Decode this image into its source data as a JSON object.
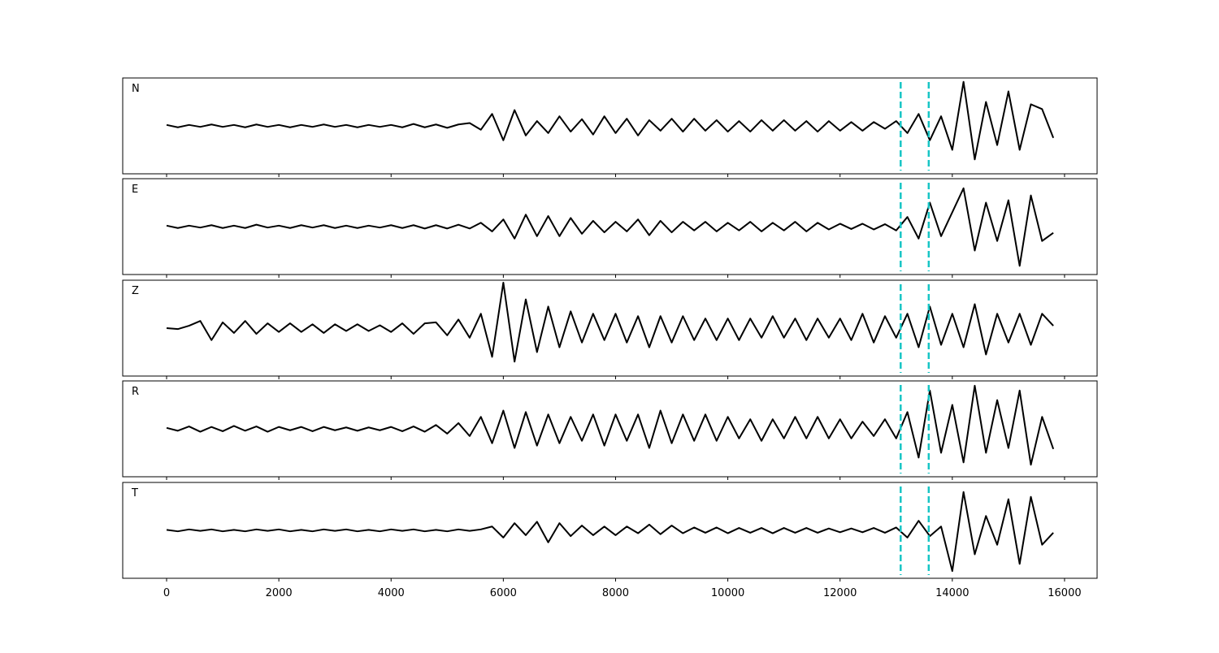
{
  "chart_data": {
    "type": "line",
    "x": [
      0,
      200,
      400,
      600,
      800,
      1000,
      1200,
      1400,
      1600,
      1800,
      2000,
      2200,
      2400,
      2600,
      2800,
      3000,
      3200,
      3400,
      3600,
      3800,
      4000,
      4200,
      4400,
      4600,
      4800,
      5000,
      5200,
      5400,
      5600,
      5800,
      6000,
      6200,
      6400,
      6600,
      6800,
      7000,
      7200,
      7400,
      7600,
      7800,
      8000,
      8200,
      8400,
      8600,
      8800,
      9000,
      9200,
      9400,
      9600,
      9800,
      10000,
      10200,
      10400,
      10600,
      10800,
      11000,
      11200,
      11400,
      11600,
      11800,
      12000,
      12200,
      12400,
      12600,
      12800,
      13000,
      13200,
      13400,
      13600,
      13800,
      14000,
      14200,
      14400,
      14600,
      14800,
      15000,
      15200,
      15400,
      15600,
      15800
    ],
    "xlim": [
      -782,
      16580
    ],
    "xticks": [
      0,
      2000,
      4000,
      6000,
      8000,
      10000,
      12000,
      14000,
      16000
    ],
    "ylim": [
      -1,
      1
    ],
    "vlines": {
      "color": "#17c5c5",
      "values": [
        13080,
        13580
      ]
    },
    "series": [
      {
        "name": "N",
        "color": "#000000",
        "values": [
          0.02,
          -0.03,
          0.02,
          -0.02,
          0.03,
          -0.02,
          0.02,
          -0.03,
          0.03,
          -0.02,
          0.02,
          -0.03,
          0.02,
          -0.02,
          0.03,
          -0.02,
          0.02,
          -0.03,
          0.02,
          -0.02,
          0.02,
          -0.03,
          0.04,
          -0.03,
          0.03,
          -0.04,
          0.03,
          0.06,
          -0.08,
          0.25,
          -0.3,
          0.33,
          -0.2,
          0.1,
          -0.15,
          0.2,
          -0.12,
          0.14,
          -0.18,
          0.2,
          -0.15,
          0.15,
          -0.2,
          0.12,
          -0.1,
          0.15,
          -0.12,
          0.15,
          -0.1,
          0.12,
          -0.12,
          0.1,
          -0.12,
          0.12,
          -0.1,
          0.12,
          -0.1,
          0.1,
          -0.12,
          0.1,
          -0.1,
          0.08,
          -0.1,
          0.08,
          -0.06,
          0.1,
          -0.15,
          0.25,
          -0.3,
          0.2,
          -0.5,
          0.92,
          -0.7,
          0.5,
          -0.4,
          0.72,
          -0.5,
          0.45,
          0.35,
          -0.25
        ]
      },
      {
        "name": "E",
        "color": "#000000",
        "values": [
          0.02,
          -0.03,
          0.02,
          -0.02,
          0.03,
          -0.03,
          0.02,
          -0.03,
          0.04,
          -0.02,
          0.02,
          -0.03,
          0.03,
          -0.02,
          0.03,
          -0.03,
          0.02,
          -0.03,
          0.02,
          -0.02,
          0.03,
          -0.03,
          0.03,
          -0.04,
          0.03,
          -0.04,
          0.04,
          -0.04,
          0.08,
          -0.1,
          0.15,
          -0.25,
          0.25,
          -0.2,
          0.22,
          -0.2,
          0.18,
          -0.15,
          0.12,
          -0.12,
          0.1,
          -0.1,
          0.15,
          -0.18,
          0.12,
          -0.12,
          0.1,
          -0.08,
          0.1,
          -0.1,
          0.08,
          -0.08,
          0.1,
          -0.1,
          0.08,
          -0.08,
          0.1,
          -0.1,
          0.08,
          -0.06,
          0.06,
          -0.05,
          0.06,
          -0.06,
          0.05,
          -0.08,
          0.2,
          -0.25,
          0.5,
          -0.2,
          0.3,
          0.8,
          -0.5,
          0.5,
          -0.3,
          0.55,
          -0.82,
          0.65,
          -0.3,
          -0.13
        ]
      },
      {
        "name": "Z",
        "color": "#000000",
        "values": [
          0.0,
          -0.02,
          0.05,
          0.15,
          -0.25,
          0.12,
          -0.1,
          0.15,
          -0.12,
          0.1,
          -0.08,
          0.1,
          -0.08,
          0.08,
          -0.1,
          0.08,
          -0.06,
          0.08,
          -0.06,
          0.06,
          -0.08,
          0.1,
          -0.12,
          0.1,
          0.12,
          -0.15,
          0.18,
          -0.2,
          0.3,
          -0.6,
          0.95,
          -0.7,
          0.6,
          -0.5,
          0.45,
          -0.4,
          0.35,
          -0.3,
          0.3,
          -0.25,
          0.3,
          -0.3,
          0.25,
          -0.4,
          0.25,
          -0.3,
          0.25,
          -0.25,
          0.2,
          -0.25,
          0.2,
          -0.25,
          0.2,
          -0.2,
          0.25,
          -0.2,
          0.2,
          -0.25,
          0.2,
          -0.2,
          0.2,
          -0.25,
          0.3,
          -0.3,
          0.25,
          -0.2,
          0.3,
          -0.4,
          0.45,
          -0.35,
          0.3,
          -0.4,
          0.5,
          -0.55,
          0.3,
          -0.3,
          0.3,
          -0.35,
          0.3,
          0.05
        ]
      },
      {
        "name": "R",
        "color": "#000000",
        "values": [
          0.02,
          -0.04,
          0.05,
          -0.06,
          0.04,
          -0.05,
          0.06,
          -0.04,
          0.05,
          -0.06,
          0.04,
          -0.03,
          0.04,
          -0.05,
          0.04,
          -0.03,
          0.03,
          -0.04,
          0.03,
          -0.03,
          0.04,
          -0.05,
          0.05,
          -0.06,
          0.08,
          -0.1,
          0.12,
          -0.15,
          0.25,
          -0.3,
          0.38,
          -0.4,
          0.35,
          -0.35,
          0.3,
          -0.3,
          0.25,
          -0.25,
          0.3,
          -0.35,
          0.3,
          -0.25,
          0.3,
          -0.4,
          0.38,
          -0.3,
          0.3,
          -0.25,
          0.3,
          -0.25,
          0.25,
          -0.2,
          0.2,
          -0.25,
          0.2,
          -0.2,
          0.25,
          -0.2,
          0.25,
          -0.2,
          0.2,
          -0.2,
          0.15,
          -0.15,
          0.2,
          -0.2,
          0.35,
          -0.6,
          0.8,
          -0.5,
          0.5,
          -0.7,
          0.9,
          -0.5,
          0.6,
          -0.4,
          0.8,
          -0.75,
          0.25,
          -0.42
        ]
      },
      {
        "name": "T",
        "color": "#000000",
        "values": [
          0.01,
          -0.02,
          0.02,
          -0.01,
          0.02,
          -0.02,
          0.01,
          -0.02,
          0.02,
          -0.01,
          0.02,
          -0.02,
          0.01,
          -0.02,
          0.02,
          -0.01,
          0.02,
          -0.02,
          0.01,
          -0.02,
          0.02,
          -0.01,
          0.02,
          -0.02,
          0.01,
          -0.02,
          0.02,
          -0.01,
          0.02,
          0.08,
          -0.15,
          0.15,
          -0.1,
          0.18,
          -0.25,
          0.15,
          -0.12,
          0.1,
          -0.1,
          0.08,
          -0.1,
          0.08,
          -0.06,
          0.12,
          -0.08,
          0.1,
          -0.06,
          0.06,
          -0.05,
          0.06,
          -0.06,
          0.05,
          -0.05,
          0.05,
          -0.06,
          0.05,
          -0.05,
          0.05,
          -0.05,
          0.04,
          -0.04,
          0.04,
          -0.04,
          0.05,
          -0.05,
          0.06,
          -0.15,
          0.2,
          -0.12,
          0.08,
          -0.85,
          0.8,
          -0.5,
          0.3,
          -0.3,
          0.65,
          -0.7,
          0.7,
          -0.3,
          -0.05
        ]
      }
    ]
  }
}
